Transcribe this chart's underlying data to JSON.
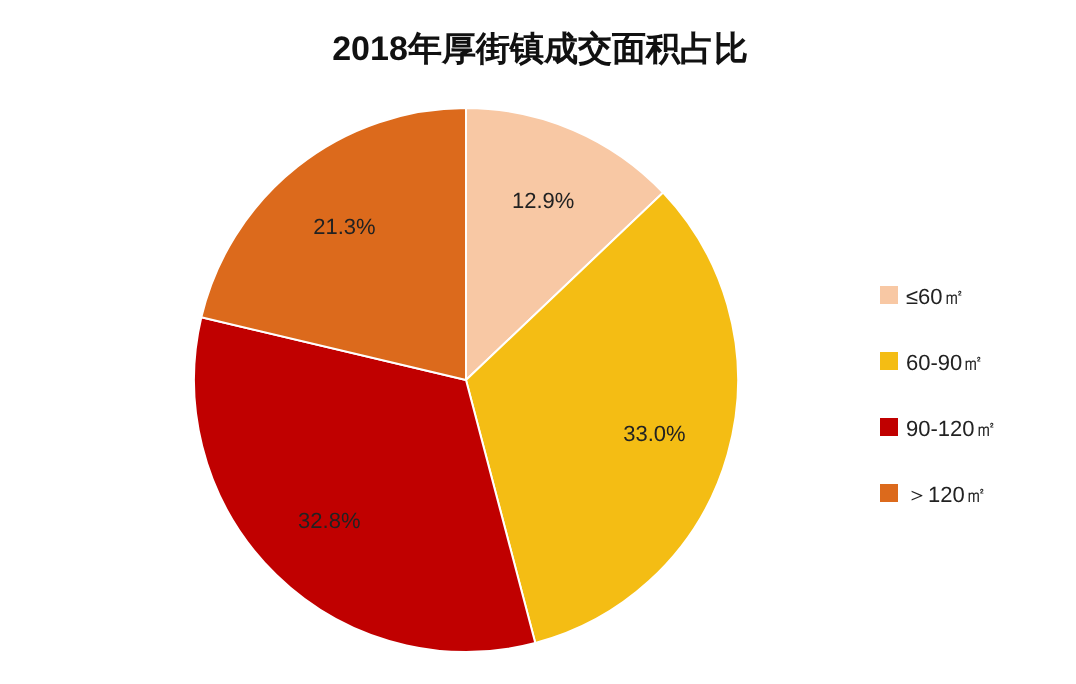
{
  "chart_data": {
    "type": "pie",
    "title": "2018年厚街镇成交面积占比",
    "categories": [
      "≤60㎡",
      "60-90㎡",
      "90-120㎡",
      "＞120㎡"
    ],
    "values": [
      12.9,
      33.0,
      32.8,
      21.3
    ],
    "value_labels": [
      "12.9%",
      "33.0%",
      "32.8%",
      "21.3%"
    ],
    "colors": [
      "#f8c8a4",
      "#f4bd14",
      "#c00000",
      "#dc6a1c"
    ],
    "legend": "right"
  }
}
